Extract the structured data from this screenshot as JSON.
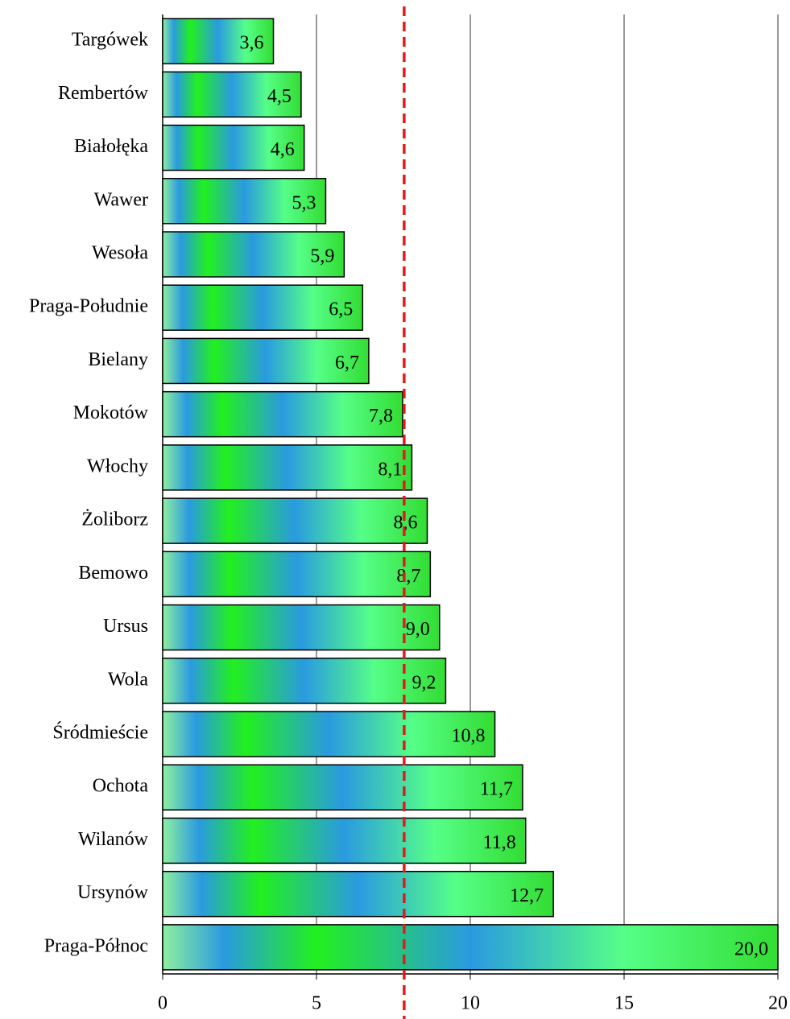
{
  "chart_data": {
    "type": "bar",
    "orientation": "horizontal",
    "categories": [
      "Targówek",
      "Rembertów",
      "Białołęka",
      "Wawer",
      "Wesoła",
      "Praga-Południe",
      "Bielany",
      "Mokotów",
      "Włochy",
      "Żoliborz",
      "Bemowo",
      "Ursus",
      "Wola",
      "Śródmieście",
      "Ochota",
      "Wilanów",
      "Ursynów",
      "Praga-Północ"
    ],
    "values": [
      3.6,
      4.5,
      4.6,
      5.3,
      5.9,
      6.5,
      6.7,
      7.8,
      8.1,
      8.6,
      8.7,
      9.0,
      9.2,
      10.8,
      11.7,
      11.8,
      12.7,
      20.0
    ],
    "value_labels": [
      "3,6",
      "4,5",
      "4,6",
      "5,3",
      "5,9",
      "6,5",
      "6,7",
      "7,8",
      "8,1",
      "8,6",
      "8,7",
      "9,0",
      "9,2",
      "10,8",
      "11,7",
      "11,8",
      "12,7",
      "20,0"
    ],
    "xlim": [
      0,
      20
    ],
    "xticks": [
      0,
      5,
      10,
      15,
      20
    ],
    "grid": true,
    "reference_value": 7.85,
    "reference_color": "#e31a1c"
  }
}
